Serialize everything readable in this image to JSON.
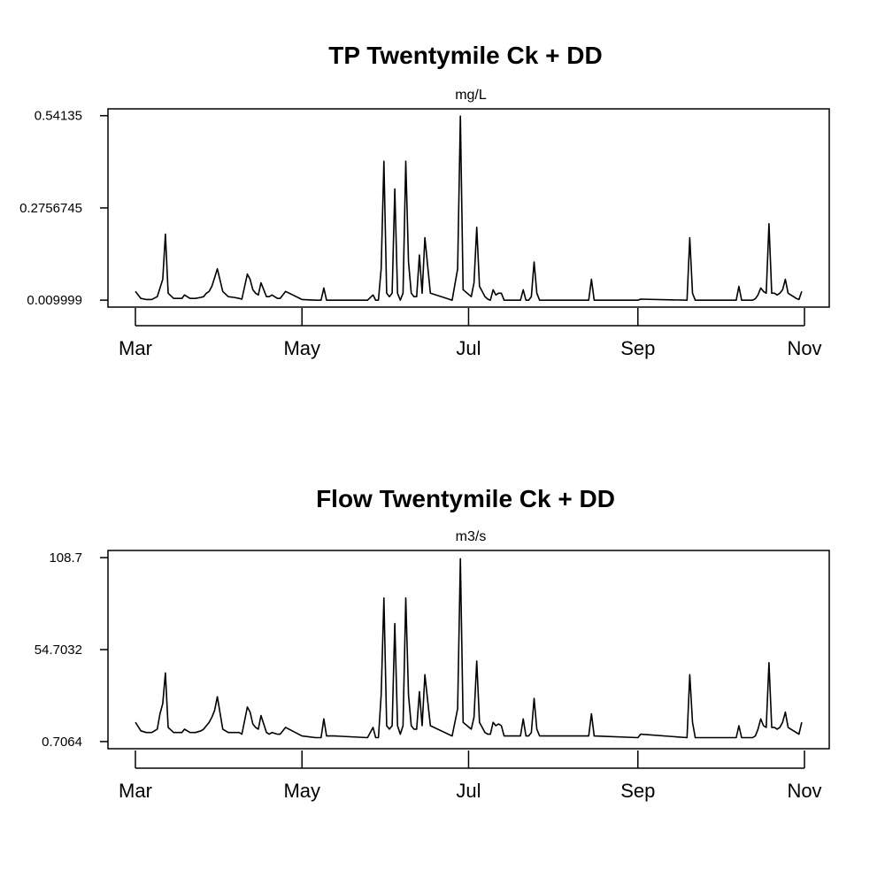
{
  "chart_data": [
    {
      "type": "line",
      "title": "TP Twentymile Ck + DD",
      "subtitle": "mg/L",
      "xlabel": "",
      "ylabel": "",
      "x_tick_labels": [
        "Mar",
        "May",
        "Jul",
        "Sep",
        "Nov"
      ],
      "x_tick_dates": [
        "2013-03-01",
        "2013-05-01",
        "2013-07-01",
        "2013-09-01",
        "2013-11-01"
      ],
      "y_tick_labels": [
        "0.54135",
        "0.2756745",
        "0.009999"
      ],
      "y_tick_values": [
        0.54135,
        0.2756745,
        0.009999
      ],
      "ylim": [
        -0.01,
        0.561
      ],
      "grid": false,
      "series": [
        {
          "x": [
            "2013-03-01",
            "2013-03-03",
            "2013-03-05",
            "2013-03-07",
            "2013-03-09",
            "2013-03-10",
            "2013-03-11",
            "2013-03-12",
            "2013-03-13",
            "2013-03-15",
            "2013-03-17",
            "2013-03-18",
            "2013-03-19",
            "2013-03-21",
            "2013-03-23",
            "2013-03-25",
            "2013-03-26",
            "2013-03-27",
            "2013-03-28",
            "2013-03-29",
            "2013-03-30",
            "2013-03-31",
            "2013-04-02",
            "2013-04-04",
            "2013-04-06",
            "2013-04-08",
            "2013-04-09",
            "2013-04-11",
            "2013-04-12",
            "2013-04-13",
            "2013-04-14",
            "2013-04-15",
            "2013-04-16",
            "2013-04-18",
            "2013-04-19",
            "2013-04-20",
            "2013-04-22",
            "2013-04-23",
            "2013-04-25",
            "2013-05-01",
            "2013-05-06",
            "2013-05-08",
            "2013-05-09",
            "2013-05-10",
            "2013-05-13",
            "2013-05-25",
            "2013-05-27",
            "2013-05-28",
            "2013-05-29",
            "2013-05-30",
            "2013-05-31",
            "2013-06-01",
            "2013-06-02",
            "2013-06-03",
            "2013-06-04",
            "2013-06-05",
            "2013-06-06",
            "2013-06-07",
            "2013-06-08",
            "2013-06-09",
            "2013-06-10",
            "2013-06-11",
            "2013-06-12",
            "2013-06-13",
            "2013-06-14",
            "2013-06-15",
            "2013-06-17",
            "2013-06-25",
            "2013-06-27",
            "2013-06-28",
            "2013-06-29",
            "2013-07-02",
            "2013-07-03",
            "2013-07-04",
            "2013-07-05",
            "2013-07-07",
            "2013-07-08",
            "2013-07-09",
            "2013-07-10",
            "2013-07-11",
            "2013-07-12",
            "2013-07-13",
            "2013-07-14",
            "2013-07-20",
            "2013-07-21",
            "2013-07-22",
            "2013-07-23",
            "2013-07-24",
            "2013-07-25",
            "2013-07-26",
            "2013-07-27",
            "2013-08-14",
            "2013-08-15",
            "2013-08-16",
            "2013-09-01",
            "2013-09-02",
            "2013-09-19",
            "2013-09-20",
            "2013-09-21",
            "2013-09-22",
            "2013-10-07",
            "2013-10-08",
            "2013-10-09",
            "2013-10-13",
            "2013-10-14",
            "2013-10-15",
            "2013-10-16",
            "2013-10-17",
            "2013-10-18",
            "2013-10-19",
            "2013-10-20",
            "2013-10-21",
            "2013-10-22",
            "2013-10-23",
            "2013-10-24",
            "2013-10-25",
            "2013-10-26",
            "2013-10-27",
            "2013-10-28",
            "2013-10-29",
            "2013-10-30",
            "2013-10-31"
          ],
          "y": [
            0.035,
            0.015,
            0.012,
            0.012,
            0.02,
            0.045,
            0.07,
            0.2,
            0.03,
            0.015,
            0.015,
            0.015,
            0.025,
            0.015,
            0.015,
            0.018,
            0.02,
            0.03,
            0.035,
            0.05,
            0.075,
            0.1,
            0.035,
            0.02,
            0.018,
            0.015,
            0.013,
            0.085,
            0.07,
            0.04,
            0.03,
            0.025,
            0.06,
            0.02,
            0.02,
            0.025,
            0.015,
            0.015,
            0.035,
            0.012,
            0.01,
            0.01,
            0.045,
            0.01,
            0.01,
            0.01,
            0.025,
            0.01,
            0.01,
            0.1,
            0.41,
            0.03,
            0.02,
            0.03,
            0.33,
            0.03,
            0.01,
            0.03,
            0.41,
            0.12,
            0.03,
            0.02,
            0.02,
            0.14,
            0.03,
            0.19,
            0.03,
            0.01,
            0.1,
            0.54,
            0.04,
            0.02,
            0.06,
            0.22,
            0.05,
            0.02,
            0.013,
            0.01,
            0.04,
            0.025,
            0.03,
            0.03,
            0.01,
            0.01,
            0.04,
            0.01,
            0.01,
            0.02,
            0.12,
            0.03,
            0.01,
            0.01,
            0.07,
            0.01,
            0.01,
            0.013,
            0.01,
            0.19,
            0.03,
            0.01,
            0.01,
            0.05,
            0.01,
            0.01,
            0.014,
            0.025,
            0.045,
            0.035,
            0.03,
            0.23,
            0.03,
            0.03,
            0.025,
            0.03,
            0.04,
            0.07,
            0.03,
            0.025,
            0.02,
            0.015,
            0.012,
            0.035
          ]
        }
      ]
    },
    {
      "type": "line",
      "title": "Flow Twentymile Ck + DD",
      "subtitle": "m3/s",
      "xlabel": "",
      "ylabel": "",
      "x_tick_labels": [
        "Mar",
        "May",
        "Jul",
        "Sep",
        "Nov"
      ],
      "x_tick_dates": [
        "2013-03-01",
        "2013-05-01",
        "2013-07-01",
        "2013-09-01",
        "2013-11-01"
      ],
      "y_tick_labels": [
        "108.7",
        "54.7032",
        "0.7064"
      ],
      "y_tick_values": [
        108.7,
        54.7032,
        0.7064
      ],
      "ylim": [
        -3.5,
        112.9
      ],
      "grid": false,
      "series": [
        {
          "x": [
            "2013-03-01",
            "2013-03-03",
            "2013-03-05",
            "2013-03-07",
            "2013-03-09",
            "2013-03-10",
            "2013-03-11",
            "2013-03-12",
            "2013-03-13",
            "2013-03-15",
            "2013-03-17",
            "2013-03-18",
            "2013-03-19",
            "2013-03-21",
            "2013-03-23",
            "2013-03-25",
            "2013-03-26",
            "2013-03-27",
            "2013-03-28",
            "2013-03-29",
            "2013-03-30",
            "2013-03-31",
            "2013-04-02",
            "2013-04-04",
            "2013-04-06",
            "2013-04-08",
            "2013-04-09",
            "2013-04-11",
            "2013-04-12",
            "2013-04-13",
            "2013-04-14",
            "2013-04-15",
            "2013-04-16",
            "2013-04-18",
            "2013-04-19",
            "2013-04-20",
            "2013-04-22",
            "2013-04-23",
            "2013-04-25",
            "2013-05-01",
            "2013-05-06",
            "2013-05-08",
            "2013-05-09",
            "2013-05-10",
            "2013-05-13",
            "2013-05-25",
            "2013-05-27",
            "2013-05-28",
            "2013-05-29",
            "2013-05-30",
            "2013-05-31",
            "2013-06-01",
            "2013-06-02",
            "2013-06-03",
            "2013-06-04",
            "2013-06-05",
            "2013-06-06",
            "2013-06-07",
            "2013-06-08",
            "2013-06-09",
            "2013-06-10",
            "2013-06-11",
            "2013-06-12",
            "2013-06-13",
            "2013-06-14",
            "2013-06-15",
            "2013-06-17",
            "2013-06-25",
            "2013-06-27",
            "2013-06-28",
            "2013-06-29",
            "2013-07-02",
            "2013-07-03",
            "2013-07-04",
            "2013-07-05",
            "2013-07-07",
            "2013-07-08",
            "2013-07-09",
            "2013-07-10",
            "2013-07-11",
            "2013-07-12",
            "2013-07-13",
            "2013-07-14",
            "2013-07-20",
            "2013-07-21",
            "2013-07-22",
            "2013-07-23",
            "2013-07-24",
            "2013-07-25",
            "2013-07-26",
            "2013-07-27",
            "2013-08-14",
            "2013-08-15",
            "2013-08-16",
            "2013-09-01",
            "2013-09-02",
            "2013-09-19",
            "2013-09-20",
            "2013-09-21",
            "2013-09-22",
            "2013-10-07",
            "2013-10-08",
            "2013-10-09",
            "2013-10-13",
            "2013-10-14",
            "2013-10-15",
            "2013-10-16",
            "2013-10-17",
            "2013-10-18",
            "2013-10-19",
            "2013-10-20",
            "2013-10-21",
            "2013-10-22",
            "2013-10-23",
            "2013-10-24",
            "2013-10-25",
            "2013-10-26",
            "2013-10-27",
            "2013-10-28",
            "2013-10-29",
            "2013-10-30",
            "2013-10-31"
          ],
          "y": [
            12,
            7,
            6,
            6,
            8,
            17,
            23,
            41,
            9,
            6,
            6,
            6,
            8,
            6,
            6,
            7,
            8,
            10,
            12,
            15,
            19,
            27,
            8,
            6,
            6,
            6,
            5,
            21,
            18,
            11,
            9,
            8,
            16,
            6,
            5,
            6,
            5,
            5,
            9,
            4,
            3,
            3,
            14,
            4,
            4,
            3,
            9,
            3,
            3,
            28,
            85,
            10,
            8,
            10,
            70,
            10,
            5,
            10,
            85,
            28,
            10,
            8,
            8,
            30,
            10,
            40,
            10,
            4,
            20,
            108,
            12,
            8,
            15,
            48,
            12,
            6,
            5,
            5,
            12,
            10,
            11,
            10,
            4,
            4,
            14,
            4,
            4,
            6,
            26,
            8,
            4,
            4,
            17,
            4,
            3,
            5,
            3,
            40,
            12,
            3,
            3,
            10,
            3,
            3,
            4,
            8,
            14,
            10,
            9,
            47,
            9,
            9,
            8,
            9,
            12,
            18,
            9,
            8,
            7,
            6,
            5,
            12
          ]
        }
      ]
    }
  ]
}
